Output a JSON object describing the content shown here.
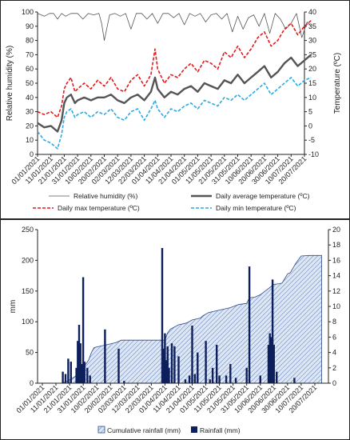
{
  "colors": {
    "humidity": "#555555",
    "avg_temp": "#555555",
    "max_temp": "#e31a1c",
    "min_temp": "#29abe2",
    "rain": "#0d1f5c",
    "cum_fill": "#dce6f5",
    "cum_hatch": "#3b5fa6",
    "axis": "#222222"
  },
  "chart_data": [
    {
      "type": "line",
      "ylabel": "Relative humidity (%)",
      "y2label": "Temperature (ºC)",
      "ylim": [
        0,
        100
      ],
      "y2lim": [
        -10,
        40
      ],
      "yticks": [
        "0",
        "10",
        "20",
        "30",
        "40",
        "50",
        "60",
        "70",
        "80",
        "90",
        "100"
      ],
      "y2ticks": [
        "-10",
        "-5",
        "0",
        "5",
        "10",
        "15",
        "20",
        "25",
        "30",
        "35",
        "40"
      ],
      "xticks": [
        "01/01/2021",
        "11/01/2021",
        "21/01/2021",
        "31/01/2021",
        "10/02/2021",
        "20/02/2021",
        "02/03/2021",
        "12/03/2021",
        "22/03/2021",
        "01/04/2021",
        "11/04/2021",
        "21/04/2021",
        "01/05/2021",
        "11/05/2021",
        "21/05/2021",
        "31/05/2021",
        "10/06/2021",
        "20/06/2021",
        "30/06/2021",
        "10/07/2021",
        "20/07/2021"
      ],
      "legend_position": "bottom",
      "series": [
        {
          "name": "Relative humidity (%)",
          "axis": "left",
          "x_days": [
            0,
            5,
            9,
            12,
            15,
            18,
            21,
            25,
            30,
            34,
            38,
            42,
            46,
            48,
            50,
            54,
            58,
            62,
            66,
            70,
            74,
            78,
            82,
            86,
            90,
            94,
            98,
            102,
            106,
            110,
            114,
            118,
            122,
            126,
            130,
            134,
            138,
            142,
            146,
            150,
            154,
            158,
            162,
            166,
            170,
            174,
            178,
            182,
            186,
            190,
            194,
            198,
            202,
            205
          ],
          "values": [
            99,
            97,
            99,
            99,
            95,
            99,
            97,
            99,
            99,
            95,
            99,
            98,
            99,
            92,
            80,
            98,
            99,
            97,
            99,
            88,
            99,
            99,
            95,
            99,
            92,
            99,
            99,
            96,
            99,
            91,
            99,
            97,
            99,
            93,
            98,
            99,
            95,
            99,
            86,
            97,
            88,
            96,
            98,
            90,
            99,
            85,
            99,
            95,
            88,
            92,
            99,
            82,
            93,
            90
          ]
        },
        {
          "name": "Daily average temperature (ºC)",
          "axis": "right",
          "x_days": [
            0,
            5,
            10,
            15,
            18,
            20,
            22,
            25,
            28,
            30,
            35,
            40,
            45,
            50,
            55,
            60,
            65,
            70,
            75,
            80,
            85,
            88,
            90,
            95,
            100,
            105,
            110,
            115,
            120,
            125,
            130,
            135,
            140,
            145,
            150,
            155,
            160,
            165,
            170,
            175,
            180,
            185,
            190,
            195,
            200,
            205
          ],
          "values": [
            1,
            -0.5,
            0,
            -2,
            2,
            8,
            10,
            11,
            8,
            9,
            10,
            9,
            10,
            10,
            11,
            9,
            8,
            10,
            11,
            9,
            12,
            17,
            13,
            10,
            12,
            11,
            13,
            14,
            12,
            15,
            14,
            13,
            16,
            15,
            18,
            15,
            17,
            19,
            21,
            17,
            19,
            22,
            24,
            21,
            23,
            25
          ]
        },
        {
          "name": "Daily max temperature (ºC)",
          "axis": "right",
          "x_days": [
            0,
            5,
            10,
            15,
            18,
            20,
            22,
            25,
            28,
            30,
            35,
            40,
            45,
            50,
            55,
            60,
            65,
            70,
            75,
            80,
            85,
            88,
            90,
            95,
            100,
            105,
            110,
            115,
            120,
            125,
            130,
            135,
            140,
            145,
            150,
            155,
            160,
            165,
            170,
            175,
            180,
            185,
            190,
            195,
            200,
            205
          ],
          "values": [
            5,
            4,
            5,
            3,
            7,
            13,
            15,
            17,
            12,
            13,
            15,
            13,
            16,
            14,
            17,
            13,
            12,
            16,
            18,
            14,
            18,
            27,
            20,
            15,
            18,
            17,
            20,
            22,
            19,
            23,
            22,
            20,
            26,
            24,
            28,
            24,
            27,
            31,
            33,
            28,
            30,
            34,
            36,
            32,
            35,
            37
          ]
        },
        {
          "name": "Daily min temperature (ºC)",
          "axis": "right",
          "x_days": [
            0,
            5,
            10,
            15,
            18,
            20,
            22,
            25,
            28,
            30,
            35,
            40,
            45,
            50,
            55,
            60,
            65,
            70,
            75,
            80,
            85,
            88,
            90,
            95,
            100,
            105,
            110,
            115,
            120,
            125,
            130,
            135,
            140,
            145,
            150,
            155,
            160,
            165,
            170,
            175,
            180,
            185,
            190,
            195,
            200,
            205
          ],
          "values": [
            -2,
            -5,
            -6,
            -8,
            -3,
            3,
            5,
            6,
            3,
            4,
            5,
            3,
            5,
            4,
            6,
            3,
            2,
            5,
            6,
            2,
            6,
            9,
            6,
            3,
            6,
            5,
            7,
            8,
            6,
            9,
            8,
            7,
            10,
            9,
            11,
            9,
            11,
            13,
            15,
            11,
            13,
            15,
            17,
            14,
            16,
            17
          ]
        }
      ]
    },
    {
      "type": "bar",
      "ylabel": "mm",
      "ylim": [
        0,
        250
      ],
      "y2lim": [
        0,
        20
      ],
      "yticks": [
        "0",
        "50",
        "100",
        "150",
        "200",
        "250"
      ],
      "y2ticks": [
        "0",
        "2",
        "4",
        "6",
        "8",
        "10",
        "12",
        "14",
        "16",
        "18",
        "20"
      ],
      "xticks": [
        "01/01/2021",
        "11/01/2021",
        "21/01/2021",
        "31/01/2021",
        "10/02/2021",
        "20/02/2021",
        "02/03/2021",
        "12/03/2021",
        "22/03/2021",
        "01/04/2021",
        "11/04/2021",
        "21/04/2021",
        "01/05/2021",
        "11/05/2021",
        "21/05/2021",
        "31/05/2021",
        "10/06/2021",
        "20/06/2021",
        "30/06/2021",
        "10/07/2021",
        "20/07/2021"
      ],
      "legend_position": "bottom",
      "series": [
        {
          "name": "Cumulative rainfall (mm)",
          "type": "area",
          "axis": "left",
          "x_days": [
            0,
            14,
            18,
            22,
            26,
            30,
            34,
            36,
            38,
            42,
            48,
            54,
            58,
            90,
            92,
            94,
            100,
            106,
            110,
            116,
            118,
            122,
            126,
            130,
            134,
            138,
            144,
            150,
            152,
            156,
            160,
            166,
            170,
            174,
            176,
            180,
            182,
            186,
            190,
            196,
            205
          ],
          "values": [
            0,
            0,
            3,
            8,
            14,
            25,
            38,
            50,
            58,
            60,
            63,
            66,
            70,
            70,
            82,
            88,
            95,
            98,
            103,
            106,
            110,
            115,
            117,
            119,
            121,
            123,
            128,
            130,
            139,
            140,
            144,
            154,
            161,
            162,
            163,
            178,
            180,
            195,
            207,
            208,
            208
          ]
        },
        {
          "name": "Rainfall (mm)",
          "type": "bar",
          "axis": "right",
          "x_days": [
            15,
            17,
            19,
            21,
            25,
            26,
            27,
            28,
            29,
            30,
            31,
            33,
            35,
            46,
            56,
            60,
            88,
            89,
            90,
            91,
            92,
            93,
            95,
            97,
            100,
            105,
            108,
            110,
            112,
            114,
            120,
            123,
            125,
            128,
            130,
            135,
            138,
            142,
            150,
            152,
            160,
            166,
            167,
            168,
            169,
            170,
            172,
            185
          ],
          "values": [
            1.5,
            1.2,
            3.2,
            2.8,
            2.0,
            5.5,
            7.6,
            5.2,
            2.5,
            13.8,
            2.8,
            2.0,
            1.0,
            7.0,
            4.5,
            0.3,
            17.6,
            4.5,
            6.5,
            3.0,
            4.8,
            2.0,
            5.2,
            4.8,
            3.5,
            0.5,
            1.0,
            7.5,
            1.2,
            4.0,
            5.5,
            0.5,
            2.0,
            5.0,
            1.0,
            1.0,
            2.5,
            0.7,
            2.0,
            15.2,
            1.0,
            5.0,
            6.5,
            6.0,
            13.5,
            5.0,
            1.5,
            0.7
          ]
        }
      ]
    }
  ]
}
